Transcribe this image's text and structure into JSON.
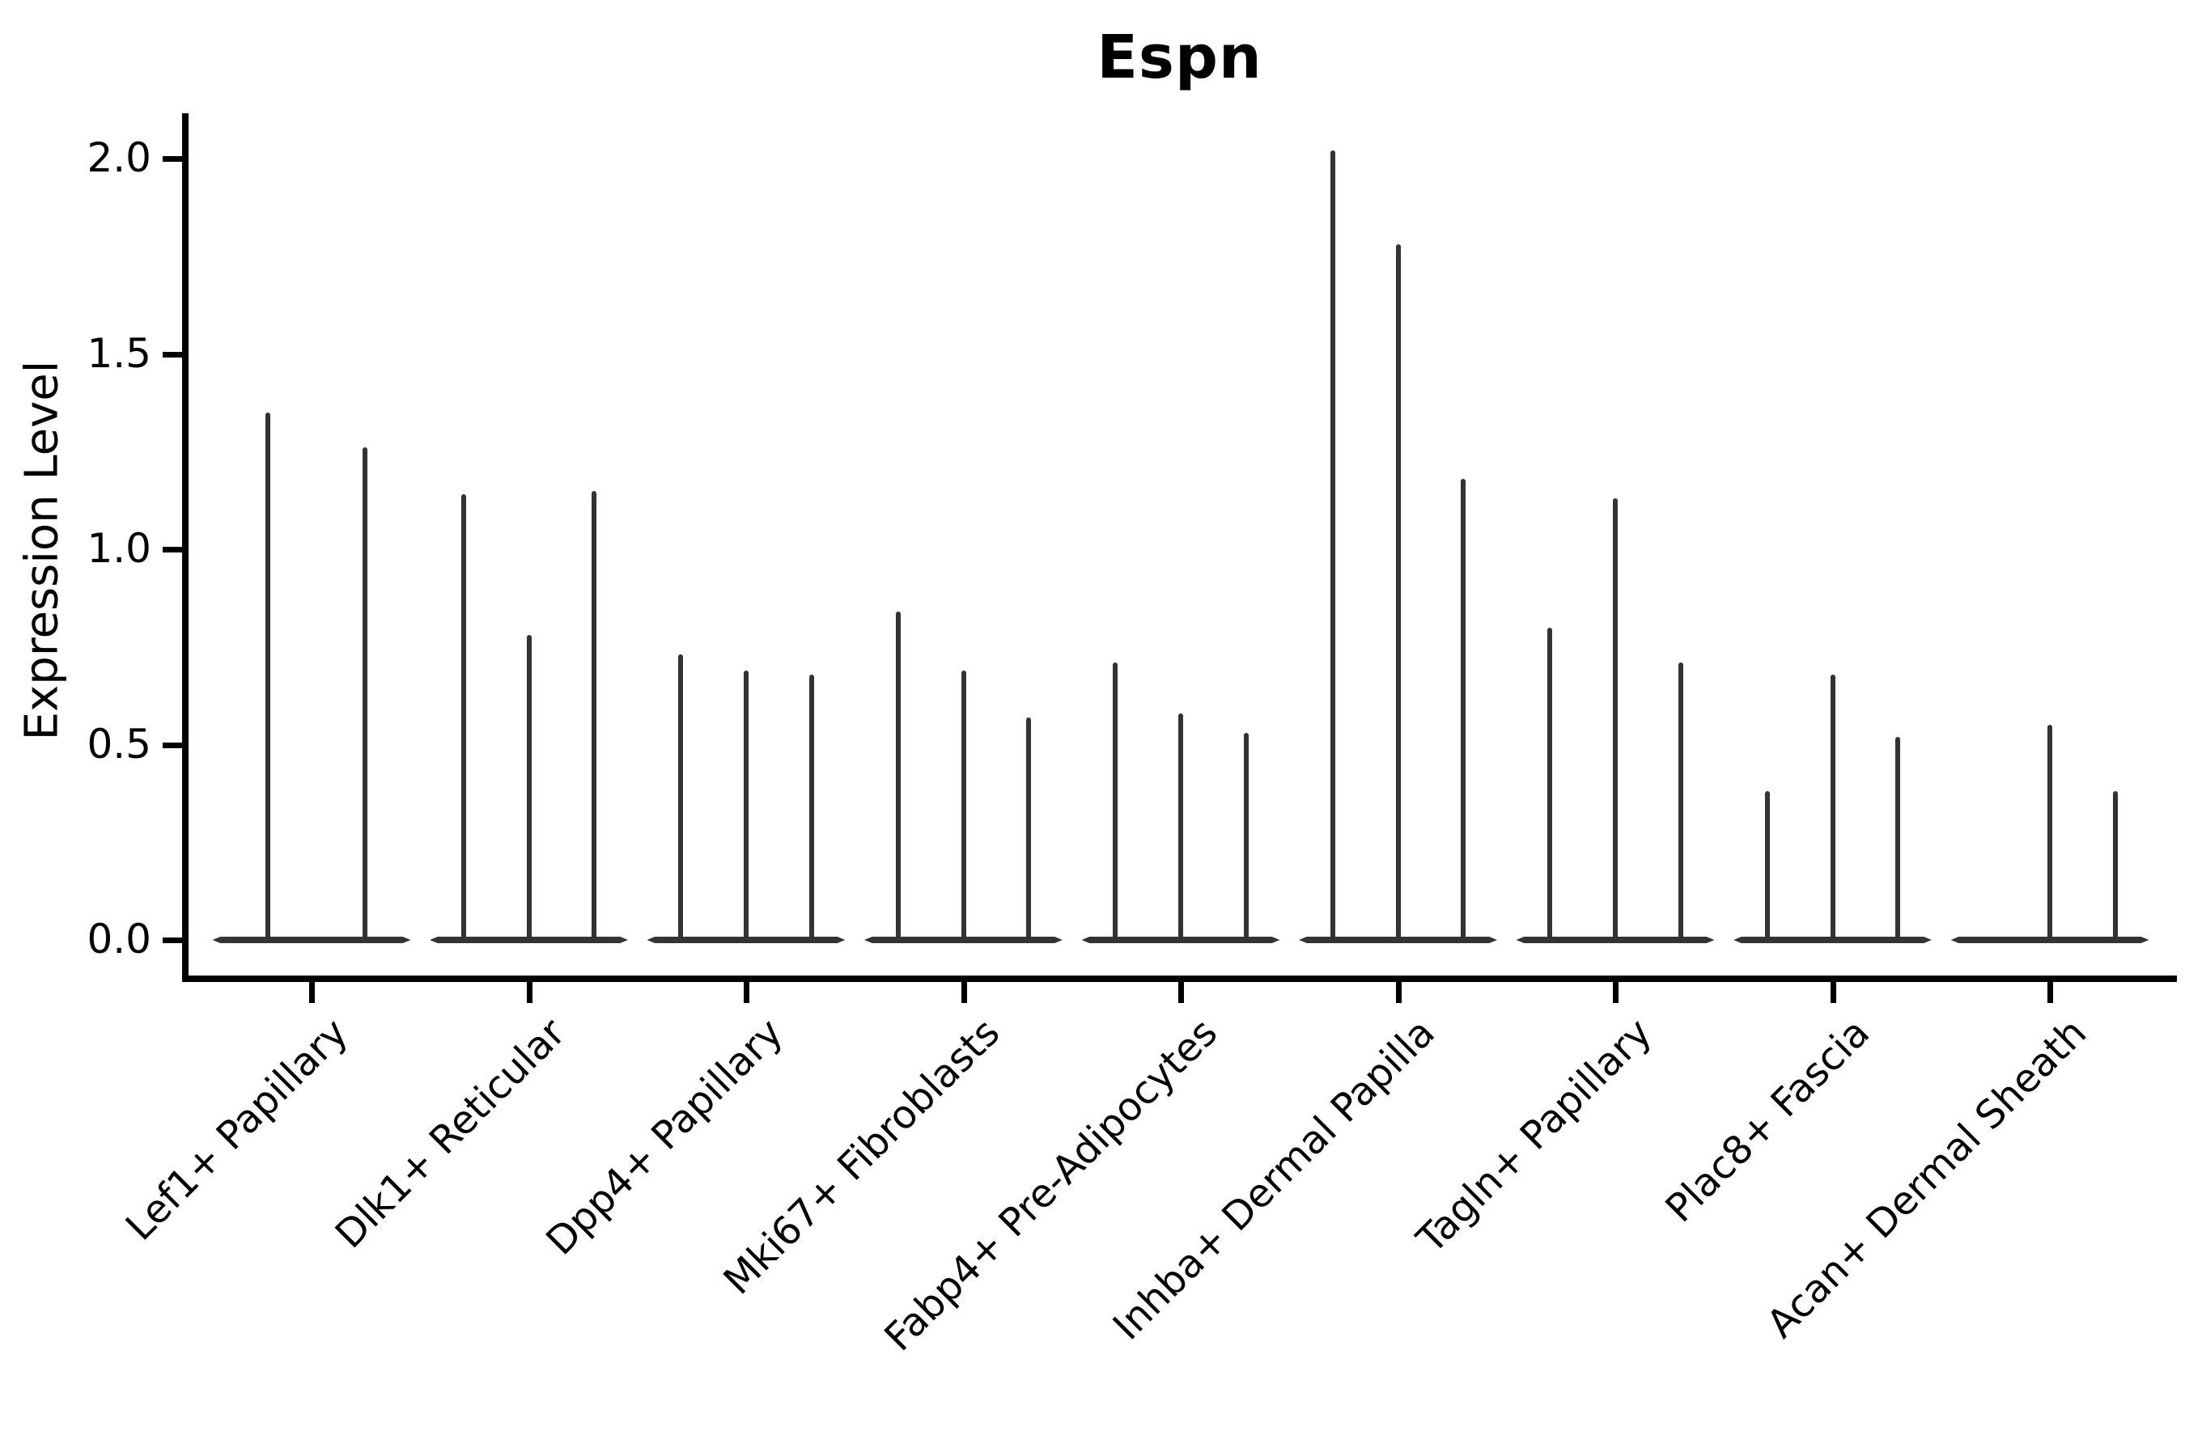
{
  "title": "Espn",
  "axes": {
    "ylabel": "Expression Level",
    "ytick_labels": [
      "0.0",
      "0.5",
      "1.0",
      "1.5",
      "2.0"
    ]
  },
  "chart_data": {
    "type": "violin",
    "title": "Espn",
    "xlabel": "",
    "ylabel": "Expression Level",
    "ylim": [
      -0.1,
      2.12
    ],
    "yticks": [
      0.0,
      0.5,
      1.0,
      1.5,
      2.0
    ],
    "grid": false,
    "legend": "none",
    "description": "Single-cell expression violin plot; each category shows 2-3 extremely thin violins: a flat lens at 0 expression plus narrow density spikes reaching the max expression value.",
    "categories": [
      "Lef1+ Papillary",
      "Dlk1+ Reticular",
      "Dpp4+ Papillary",
      "Mki67+ Fibroblasts",
      "Fabp4+ Pre-Adipocytes",
      "Inhba+ Dermal Papilla",
      "Tagln+ Papillary",
      "Plac8+ Fascia",
      "Acan+ Dermal Sheath"
    ],
    "groups": [
      {
        "category": "Lef1+ Papillary",
        "spikes": [
          {
            "pos": 0.28,
            "value": 1.35
          },
          {
            "pos": 0.77,
            "value": 1.26
          }
        ]
      },
      {
        "category": "Dlk1+ Reticular",
        "spikes": [
          {
            "pos": 0.17,
            "value": 1.14
          },
          {
            "pos": 0.5,
            "value": 0.78
          },
          {
            "pos": 0.83,
            "value": 1.15
          }
        ]
      },
      {
        "category": "Dpp4+ Papillary",
        "spikes": [
          {
            "pos": 0.17,
            "value": 0.73
          },
          {
            "pos": 0.5,
            "value": 0.69
          },
          {
            "pos": 0.83,
            "value": 0.68
          }
        ]
      },
      {
        "category": "Mki67+ Fibroblasts",
        "spikes": [
          {
            "pos": 0.17,
            "value": 0.84
          },
          {
            "pos": 0.5,
            "value": 0.69
          },
          {
            "pos": 0.83,
            "value": 0.57
          }
        ]
      },
      {
        "category": "Fabp4+ Pre-Adipocytes",
        "spikes": [
          {
            "pos": 0.17,
            "value": 0.71
          },
          {
            "pos": 0.5,
            "value": 0.58
          },
          {
            "pos": 0.83,
            "value": 0.53
          }
        ]
      },
      {
        "category": "Inhba+ Dermal Papilla",
        "spikes": [
          {
            "pos": 0.17,
            "value": 2.02
          },
          {
            "pos": 0.5,
            "value": 1.78
          },
          {
            "pos": 0.83,
            "value": 1.18
          }
        ]
      },
      {
        "category": "Tagln+ Papillary",
        "spikes": [
          {
            "pos": 0.17,
            "value": 0.8
          },
          {
            "pos": 0.5,
            "value": 1.13
          },
          {
            "pos": 0.83,
            "value": 0.71
          }
        ]
      },
      {
        "category": "Plac8+ Fascia",
        "spikes": [
          {
            "pos": 0.17,
            "value": 0.38
          },
          {
            "pos": 0.5,
            "value": 0.68
          },
          {
            "pos": 0.83,
            "value": 0.52
          }
        ]
      },
      {
        "category": "Acan+ Dermal Sheath",
        "spikes": [
          {
            "pos": 0.5,
            "value": 0.55
          },
          {
            "pos": 0.83,
            "value": 0.38
          }
        ]
      }
    ],
    "style": {
      "violin_color": "#333333",
      "axis_color": "#000000",
      "text_color": "#000000",
      "background": "#ffffff"
    }
  }
}
